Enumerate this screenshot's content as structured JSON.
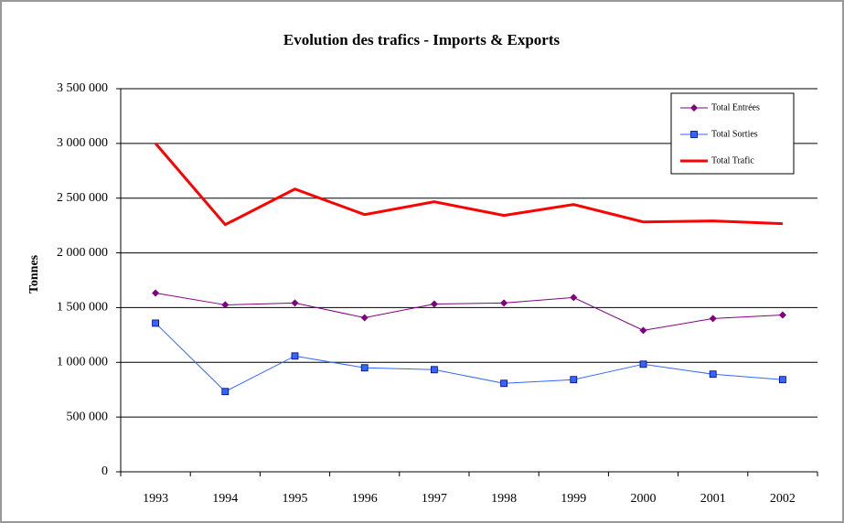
{
  "chart_data": {
    "type": "line",
    "title": "Evolution des trafics - Imports & Exports",
    "y_label": "Tonnes",
    "categories": [
      "1993",
      "1994",
      "1995",
      "1996",
      "1997",
      "1998",
      "1999",
      "2000",
      "2001",
      "2002"
    ],
    "series": [
      {
        "name": "Total Entrées",
        "color": "#800080",
        "marker": "diamond",
        "values": [
          1633000,
          1525000,
          1542000,
          1408000,
          1533000,
          1542000,
          1592000,
          1292000,
          1400000,
          1433000
        ]
      },
      {
        "name": "Total Sorties",
        "color": "#3366ff",
        "marker": "square",
        "values": [
          1358000,
          733000,
          1058000,
          950000,
          933000,
          808000,
          842000,
          983000,
          892000,
          842000
        ]
      },
      {
        "name": "Total Trafic",
        "color": "#ff0000",
        "marker": "none",
        "values": [
          3000000,
          2258000,
          2583000,
          2350000,
          2467000,
          2342000,
          2442000,
          2283000,
          2292000,
          2267000
        ]
      }
    ],
    "ylim": [
      0,
      3500000
    ],
    "yticks": [
      0,
      {
        "value": 500000,
        "label": "500 000"
      },
      {
        "value": 1000000,
        "label": "1 000 000"
      },
      {
        "value": 1500000,
        "label": "1 500 000"
      },
      {
        "value": 2000000,
        "label": "2 000 000"
      },
      {
        "value": 2500000,
        "label": "2 500 000"
      },
      {
        "value": 3000000,
        "label": "3 000 000"
      },
      {
        "value": 3500000,
        "label": "3 500 000"
      }
    ],
    "grid": true,
    "legend": "upper right"
  }
}
